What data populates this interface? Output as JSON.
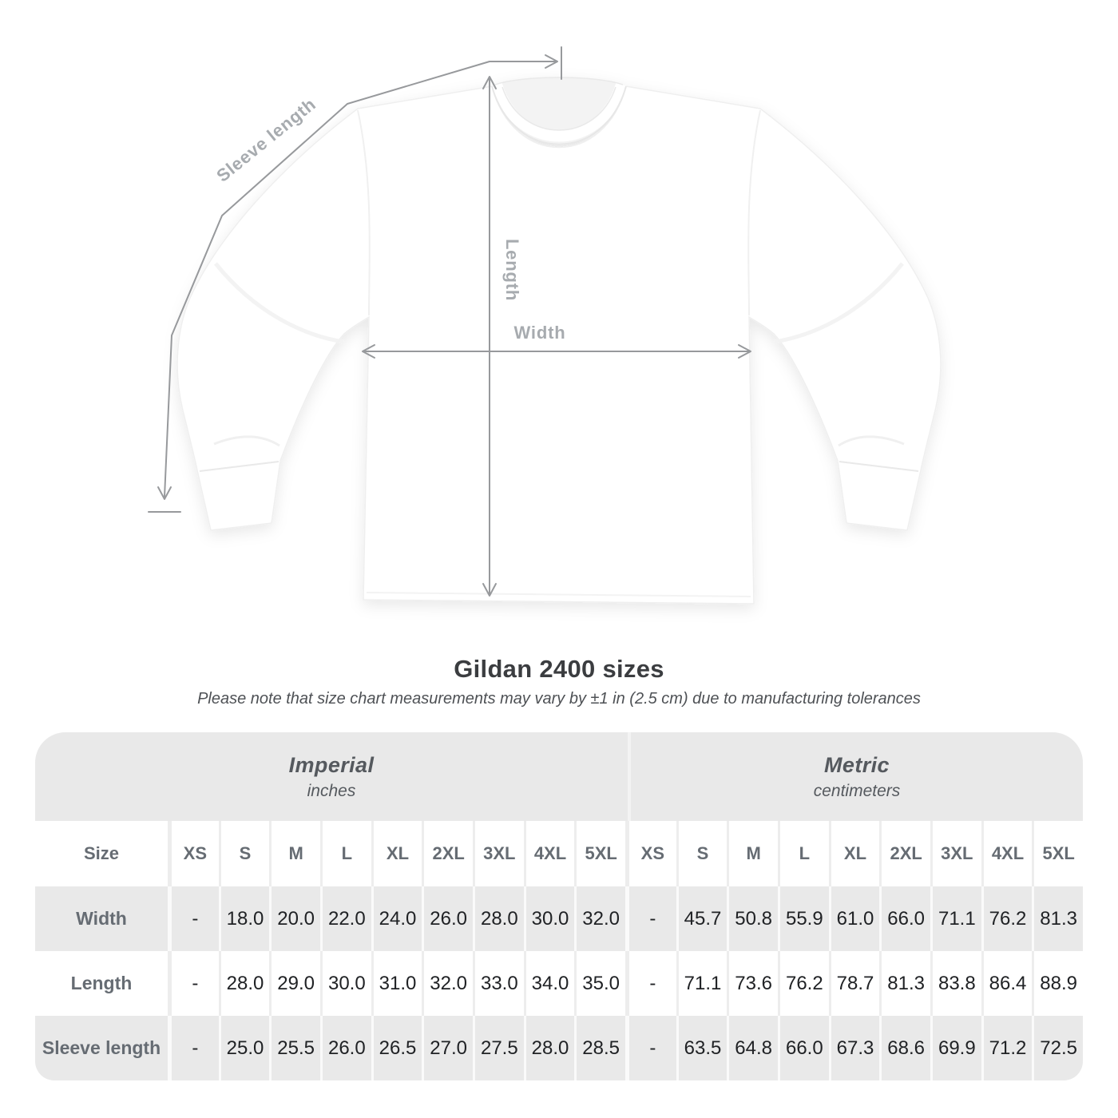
{
  "title": "Gildan 2400 sizes",
  "subtitle": "Please note that size chart measurements may vary by ±1 in (2.5 cm) due to manufacturing tolerances",
  "diagram": {
    "labels": {
      "sleeve_length": "Sleeve length",
      "length": "Length",
      "width": "Width"
    }
  },
  "table": {
    "size_header": "Size",
    "empty_value": "-",
    "unit_groups": [
      {
        "label": "Imperial",
        "sublabel": "inches"
      },
      {
        "label": "Metric",
        "sublabel": "centimeters"
      }
    ]
  },
  "chart_data": {
    "type": "table",
    "title": "Gildan 2400 sizes",
    "columns": [
      "XS",
      "S",
      "M",
      "L",
      "XL",
      "2XL",
      "3XL",
      "4XL",
      "5XL"
    ],
    "unit_groups": [
      "inches",
      "centimeters"
    ],
    "rows": [
      {
        "measure": "Width",
        "imperial": [
          null,
          18.0,
          20.0,
          22.0,
          24.0,
          26.0,
          28.0,
          30.0,
          32.0
        ],
        "metric": [
          null,
          45.7,
          50.8,
          55.9,
          61.0,
          66.0,
          71.1,
          76.2,
          81.3
        ]
      },
      {
        "measure": "Length",
        "imperial": [
          null,
          28.0,
          29.0,
          30.0,
          31.0,
          32.0,
          33.0,
          34.0,
          35.0
        ],
        "metric": [
          null,
          71.1,
          73.6,
          76.2,
          78.7,
          81.3,
          83.8,
          86.4,
          88.9
        ]
      },
      {
        "measure": "Sleeve length",
        "imperial": [
          null,
          25.0,
          25.5,
          26.0,
          26.5,
          27.0,
          27.5,
          28.0,
          28.5
        ],
        "metric": [
          null,
          63.5,
          64.8,
          66.0,
          67.3,
          68.6,
          69.9,
          71.2,
          72.5
        ]
      }
    ]
  },
  "colors": {
    "band_gray": "#e9e9e9",
    "row_gray": "#e9e9e9",
    "header_text": "#666c73",
    "value_text": "#202225",
    "annotation_line": "#97999c",
    "annotation_label": "#a7abaf"
  }
}
